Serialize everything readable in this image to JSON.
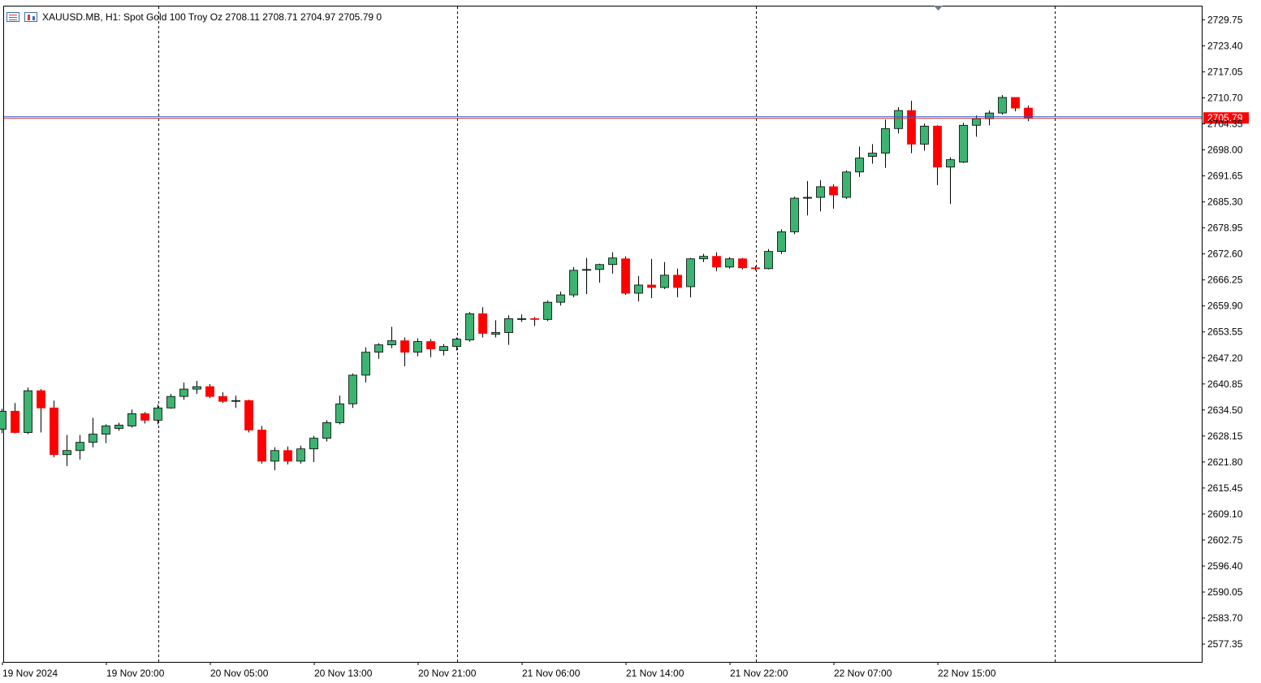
{
  "header": {
    "symbol_line": "XAUUSD.MB, H1:  Spot Gold 100 Troy Oz  2708.11 2708.71 2704.97 2705.79  0",
    "icons": [
      "chart-menu-icon",
      "chart-bars-icon"
    ]
  },
  "price_label": "2705.79",
  "colors": {
    "bull": "#3cb371",
    "bear": "#ff0000",
    "candle_outline": "#000000",
    "price_line_blue": "#3355cc",
    "price_line_red": "#cc3333",
    "price_label_bg": "#ff0000",
    "grid_separator": "#000000"
  },
  "chart_data": {
    "type": "candlestick",
    "ylim": [
      2573.0,
      2733.0
    ],
    "y_ticks": [
      "2729.75",
      "2723.40",
      "2717.05",
      "2710.70",
      "2704.35",
      "2698.00",
      "2691.65",
      "2685.30",
      "2678.95",
      "2672.60",
      "2666.25",
      "2659.90",
      "2653.55",
      "2647.20",
      "2640.85",
      "2634.50",
      "2628.15",
      "2621.80",
      "2615.45",
      "2609.10",
      "2602.75",
      "2596.40",
      "2590.05",
      "2583.70",
      "2577.35"
    ],
    "x_labels": [
      "19 Nov 2024",
      "19 Nov 20:00",
      "20 Nov 05:00",
      "20 Nov 13:00",
      "20 Nov 21:00",
      "21 Nov 06:00",
      "21 Nov 14:00",
      "21 Nov 22:00",
      "22 Nov 07:00",
      "22 Nov 15:00"
    ],
    "day_separators_after_label": [
      "19 Nov 20:00",
      "20 Nov 21:00",
      "21 Nov 22:00"
    ],
    "current_price": 2705.79,
    "candles": [
      {
        "o": 2629.8,
        "h": 2634.8,
        "l": 2628.8,
        "c": 2634.2
      },
      {
        "o": 2634.2,
        "h": 2636.2,
        "l": 2628.8,
        "c": 2629.0
      },
      {
        "o": 2629.0,
        "h": 2640.0,
        "l": 2628.6,
        "c": 2639.2
      },
      {
        "o": 2639.2,
        "h": 2639.6,
        "l": 2629.0,
        "c": 2635.0
      },
      {
        "o": 2635.0,
        "h": 2636.8,
        "l": 2623.0,
        "c": 2623.6
      },
      {
        "o": 2623.6,
        "h": 2628.4,
        "l": 2620.8,
        "c": 2624.6
      },
      {
        "o": 2624.6,
        "h": 2628.4,
        "l": 2622.4,
        "c": 2626.6
      },
      {
        "o": 2626.6,
        "h": 2632.6,
        "l": 2625.4,
        "c": 2628.6
      },
      {
        "o": 2628.6,
        "h": 2631.0,
        "l": 2626.4,
        "c": 2630.6
      },
      {
        "o": 2630.0,
        "h": 2631.4,
        "l": 2629.4,
        "c": 2630.8
      },
      {
        "o": 2630.6,
        "h": 2634.6,
        "l": 2630.2,
        "c": 2633.6
      },
      {
        "o": 2633.6,
        "h": 2634.0,
        "l": 2631.2,
        "c": 2632.0
      },
      {
        "o": 2632.0,
        "h": 2635.8,
        "l": 2631.0,
        "c": 2635.0
      },
      {
        "o": 2635.0,
        "h": 2638.4,
        "l": 2634.8,
        "c": 2637.8
      },
      {
        "o": 2637.8,
        "h": 2641.2,
        "l": 2637.0,
        "c": 2639.6
      },
      {
        "o": 2639.6,
        "h": 2641.6,
        "l": 2638.4,
        "c": 2640.2
      },
      {
        "o": 2640.2,
        "h": 2640.8,
        "l": 2637.4,
        "c": 2637.8
      },
      {
        "o": 2637.8,
        "h": 2638.8,
        "l": 2636.2,
        "c": 2636.6
      },
      {
        "o": 2636.6,
        "h": 2638.0,
        "l": 2635.0,
        "c": 2636.8
      },
      {
        "o": 2636.8,
        "h": 2637.0,
        "l": 2629.0,
        "c": 2629.6
      },
      {
        "o": 2629.6,
        "h": 2630.6,
        "l": 2621.4,
        "c": 2622.0
      },
      {
        "o": 2622.0,
        "h": 2625.4,
        "l": 2619.8,
        "c": 2624.6
      },
      {
        "o": 2624.6,
        "h": 2625.6,
        "l": 2621.2,
        "c": 2622.0
      },
      {
        "o": 2622.0,
        "h": 2625.8,
        "l": 2621.4,
        "c": 2625.0
      },
      {
        "o": 2625.0,
        "h": 2628.2,
        "l": 2621.8,
        "c": 2627.6
      },
      {
        "o": 2627.6,
        "h": 2632.0,
        "l": 2626.8,
        "c": 2631.4
      },
      {
        "o": 2631.4,
        "h": 2638.0,
        "l": 2631.0,
        "c": 2636.0
      },
      {
        "o": 2636.0,
        "h": 2643.4,
        "l": 2635.0,
        "c": 2643.0
      },
      {
        "o": 2643.0,
        "h": 2649.8,
        "l": 2641.2,
        "c": 2648.6
      },
      {
        "o": 2648.6,
        "h": 2650.8,
        "l": 2647.0,
        "c": 2650.4
      },
      {
        "o": 2650.4,
        "h": 2654.8,
        "l": 2649.6,
        "c": 2651.4
      },
      {
        "o": 2651.4,
        "h": 2652.2,
        "l": 2645.2,
        "c": 2648.6
      },
      {
        "o": 2648.6,
        "h": 2652.0,
        "l": 2647.6,
        "c": 2651.2
      },
      {
        "o": 2651.2,
        "h": 2651.8,
        "l": 2647.4,
        "c": 2649.4
      },
      {
        "o": 2649.0,
        "h": 2650.6,
        "l": 2647.8,
        "c": 2650.0
      },
      {
        "o": 2650.0,
        "h": 2652.2,
        "l": 2649.0,
        "c": 2651.8
      },
      {
        "o": 2651.6,
        "h": 2658.4,
        "l": 2651.2,
        "c": 2658.0
      },
      {
        "o": 2658.0,
        "h": 2659.6,
        "l": 2652.2,
        "c": 2653.2
      },
      {
        "o": 2653.0,
        "h": 2656.4,
        "l": 2652.2,
        "c": 2653.4
      },
      {
        "o": 2653.4,
        "h": 2657.6,
        "l": 2650.4,
        "c": 2656.8
      },
      {
        "o": 2656.6,
        "h": 2657.8,
        "l": 2656.0,
        "c": 2656.8
      },
      {
        "o": 2656.8,
        "h": 2657.2,
        "l": 2655.0,
        "c": 2656.6
      },
      {
        "o": 2656.6,
        "h": 2661.2,
        "l": 2656.2,
        "c": 2660.8
      },
      {
        "o": 2660.8,
        "h": 2663.4,
        "l": 2660.0,
        "c": 2662.6
      },
      {
        "o": 2662.6,
        "h": 2669.4,
        "l": 2662.0,
        "c": 2668.6
      },
      {
        "o": 2668.6,
        "h": 2671.6,
        "l": 2662.8,
        "c": 2668.8
      },
      {
        "o": 2668.8,
        "h": 2670.2,
        "l": 2665.6,
        "c": 2670.0
      },
      {
        "o": 2670.0,
        "h": 2673.0,
        "l": 2667.8,
        "c": 2671.6
      },
      {
        "o": 2671.4,
        "h": 2672.0,
        "l": 2662.6,
        "c": 2663.0
      },
      {
        "o": 2663.0,
        "h": 2667.2,
        "l": 2661.0,
        "c": 2665.0
      },
      {
        "o": 2665.0,
        "h": 2671.4,
        "l": 2661.8,
        "c": 2664.4
      },
      {
        "o": 2664.4,
        "h": 2670.6,
        "l": 2664.0,
        "c": 2667.4
      },
      {
        "o": 2667.4,
        "h": 2669.0,
        "l": 2662.0,
        "c": 2664.4
      },
      {
        "o": 2664.6,
        "h": 2671.6,
        "l": 2662.0,
        "c": 2671.4
      },
      {
        "o": 2671.4,
        "h": 2672.6,
        "l": 2670.6,
        "c": 2672.0
      },
      {
        "o": 2672.0,
        "h": 2673.0,
        "l": 2668.4,
        "c": 2669.4
      },
      {
        "o": 2669.4,
        "h": 2671.8,
        "l": 2669.0,
        "c": 2671.4
      },
      {
        "o": 2671.4,
        "h": 2671.6,
        "l": 2668.8,
        "c": 2669.2
      },
      {
        "o": 2669.2,
        "h": 2669.6,
        "l": 2668.6,
        "c": 2669.0
      },
      {
        "o": 2669.0,
        "h": 2673.8,
        "l": 2668.8,
        "c": 2673.2
      },
      {
        "o": 2673.2,
        "h": 2678.6,
        "l": 2672.6,
        "c": 2678.0
      },
      {
        "o": 2678.0,
        "h": 2686.6,
        "l": 2677.4,
        "c": 2686.2
      },
      {
        "o": 2686.2,
        "h": 2690.4,
        "l": 2682.0,
        "c": 2686.4
      },
      {
        "o": 2686.4,
        "h": 2690.6,
        "l": 2683.0,
        "c": 2689.0
      },
      {
        "o": 2689.0,
        "h": 2689.6,
        "l": 2683.6,
        "c": 2687.0
      },
      {
        "o": 2686.4,
        "h": 2693.0,
        "l": 2686.0,
        "c": 2692.6
      },
      {
        "o": 2692.6,
        "h": 2698.8,
        "l": 2691.4,
        "c": 2696.0
      },
      {
        "o": 2696.4,
        "h": 2699.4,
        "l": 2694.6,
        "c": 2697.2
      },
      {
        "o": 2697.2,
        "h": 2705.4,
        "l": 2693.6,
        "c": 2703.2
      },
      {
        "o": 2703.2,
        "h": 2708.4,
        "l": 2702.0,
        "c": 2707.6
      },
      {
        "o": 2707.6,
        "h": 2710.0,
        "l": 2697.2,
        "c": 2699.4
      },
      {
        "o": 2699.4,
        "h": 2704.4,
        "l": 2697.8,
        "c": 2703.8
      },
      {
        "o": 2703.8,
        "h": 2704.0,
        "l": 2689.4,
        "c": 2693.8
      },
      {
        "o": 2693.8,
        "h": 2696.2,
        "l": 2684.8,
        "c": 2695.6
      },
      {
        "o": 2695.0,
        "h": 2704.6,
        "l": 2694.8,
        "c": 2704.0
      },
      {
        "o": 2704.0,
        "h": 2706.4,
        "l": 2701.2,
        "c": 2705.6
      },
      {
        "o": 2705.6,
        "h": 2707.6,
        "l": 2704.0,
        "c": 2707.0
      },
      {
        "o": 2707.0,
        "h": 2711.4,
        "l": 2706.6,
        "c": 2710.8
      },
      {
        "o": 2710.8,
        "h": 2710.8,
        "l": 2707.4,
        "c": 2708.2
      },
      {
        "o": 2708.2,
        "h": 2708.8,
        "l": 2705.0,
        "c": 2705.8
      }
    ]
  }
}
